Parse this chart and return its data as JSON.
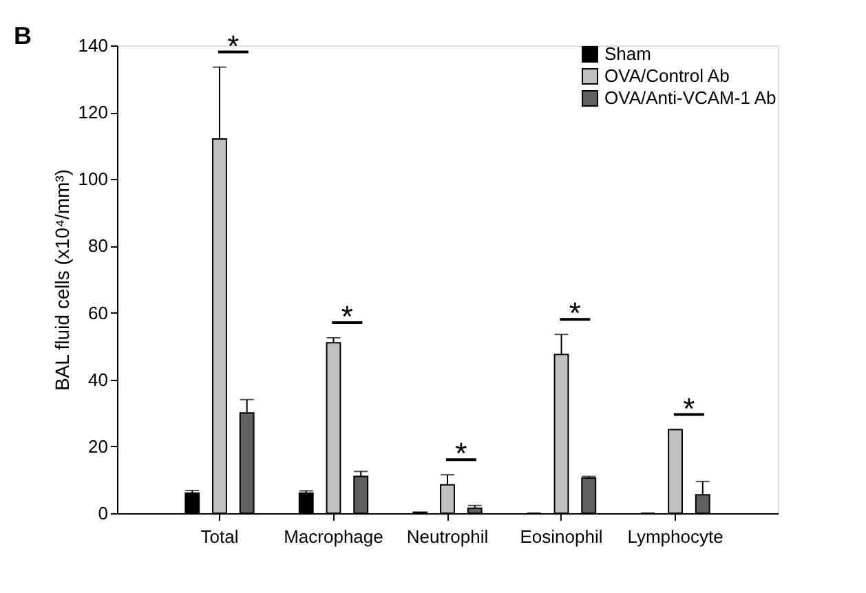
{
  "chart_data": {
    "type": "bar",
    "ylabel": "BAL fluid cells (x10⁴/mm³)",
    "categories": [
      "Total",
      "Macrophage",
      "Neutrophil",
      "Eosinophil",
      "Lymphocyte"
    ],
    "series": [
      {
        "name": "Sham",
        "color": "#000000",
        "values": [
          6,
          6,
          0.3,
          0,
          0
        ],
        "errors": [
          [
            6,
            6.8
          ],
          [
            6,
            6.7
          ],
          null,
          null,
          null
        ]
      },
      {
        "name": "OVA/Control Ab",
        "color": "#c0c0c0",
        "values": [
          112,
          51,
          8.5,
          47.5,
          25
        ],
        "errors": [
          [
            112,
            133.5
          ],
          [
            51,
            52.5
          ],
          [
            8.5,
            11.5
          ],
          [
            47.5,
            53.5
          ],
          null
        ]
      },
      {
        "name": "OVA/Anti-VCAM-1 Ab",
        "color": "#606060",
        "values": [
          30,
          11,
          1.5,
          10.5,
          5.5
        ],
        "errors": [
          [
            30,
            34
          ],
          [
            11,
            12.5
          ],
          [
            1.5,
            2.3
          ],
          [
            10.5,
            11
          ],
          [
            5.5,
            9.5
          ]
        ]
      }
    ],
    "ylim": [
      0,
      140
    ],
    "yticks": [
      0,
      20,
      40,
      60,
      80,
      100,
      120,
      140
    ],
    "grid": false,
    "legend": "top right",
    "annotations": [
      "B",
      "*",
      "*",
      "*",
      "*",
      "*"
    ]
  }
}
